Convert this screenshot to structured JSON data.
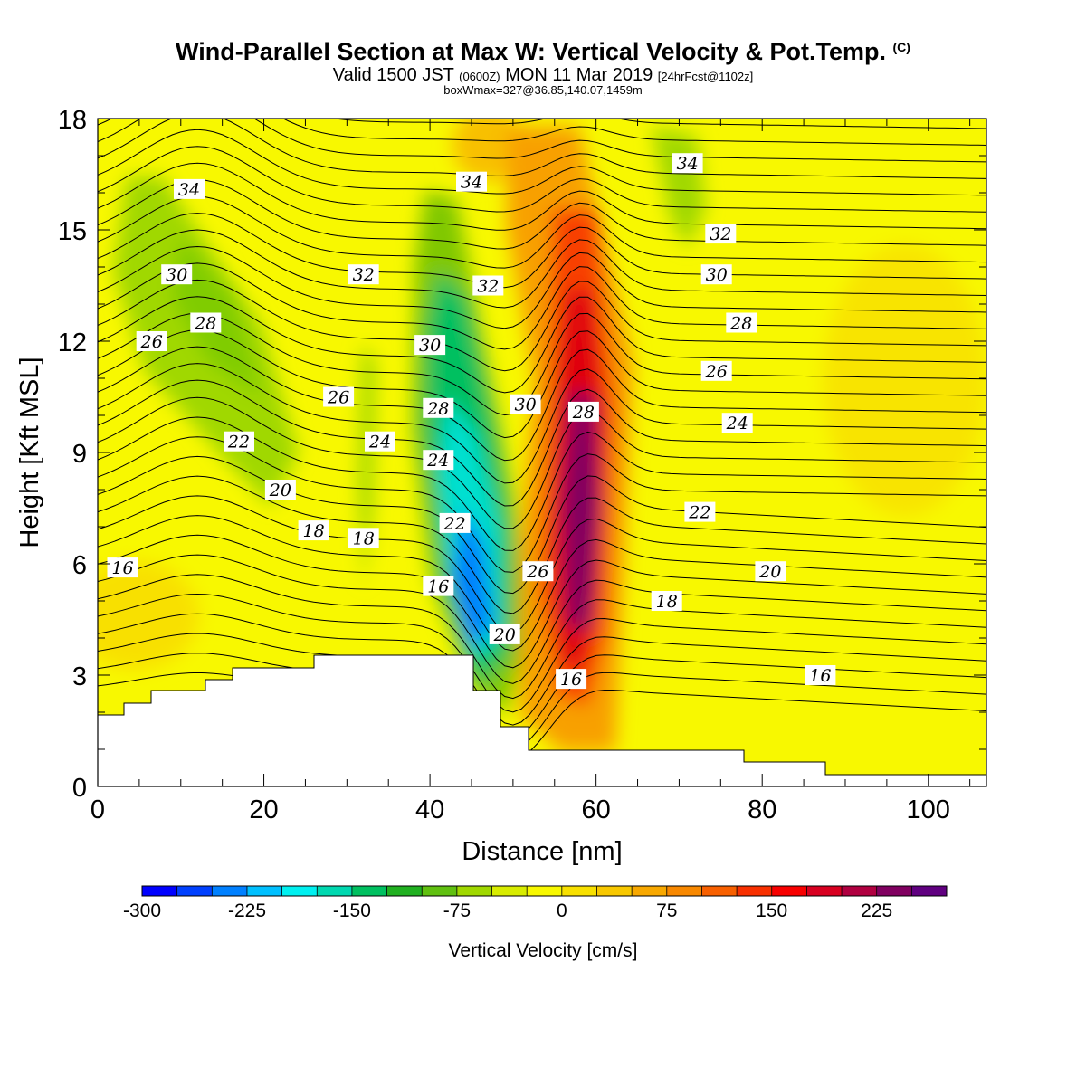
{
  "header": {
    "title": "Wind-Parallel Section at Max W: Vertical Velocity & Pot.Temp.",
    "title_mark": "(C)",
    "valid_prefix": "Valid 1500 JST",
    "valid_z": "(0600Z)",
    "valid_date": "MON 11 Mar 2019",
    "forecast": "[24hrFcst@1102z]",
    "box_info": "boxWmax=327@36.85,140.07,1459m"
  },
  "chart_data": {
    "type": "heatmap",
    "xlabel": "Distance [nm]",
    "ylabel": "Height [Kft MSL]",
    "xlim": [
      0,
      107
    ],
    "ylim": [
      0,
      18
    ],
    "x_ticks": [
      0,
      20,
      40,
      60,
      80,
      100
    ],
    "y_ticks": [
      0,
      3,
      6,
      9,
      12,
      15,
      18
    ],
    "grid": false,
    "colorbar": {
      "label": "Vertical Velocity [cm/s]",
      "tick_labels": [
        -300,
        -225,
        -150,
        -75,
        0,
        75,
        150,
        225
      ],
      "colors": [
        "#0000ff",
        "#0040ff",
        "#0080ff",
        "#00c0ff",
        "#00f0f0",
        "#00d8b0",
        "#00c060",
        "#20b020",
        "#60c010",
        "#a0d800",
        "#d8ec00",
        "#f8f800",
        "#f8e000",
        "#f8c800",
        "#f8a800",
        "#f88800",
        "#f86000",
        "#f83000",
        "#f80000",
        "#d80020",
        "#b00040",
        "#800060",
        "#600080"
      ]
    },
    "terrain_heights_kft": {
      "x": [
        0,
        3,
        6,
        13,
        16,
        26,
        45,
        48,
        52,
        78,
        88,
        107
      ],
      "height": [
        1.9,
        2.2,
        2.5,
        2.9,
        3.2,
        3.5,
        2.6,
        1.7,
        1.0,
        0.7,
        0.4,
        0.4
      ]
    },
    "theta_contour_labels": [
      {
        "value": 34,
        "x": 11,
        "y": 16.1
      },
      {
        "value": 30,
        "x": 9.5,
        "y": 13.8
      },
      {
        "value": 28,
        "x": 13,
        "y": 12.5
      },
      {
        "value": 26,
        "x": 6.5,
        "y": 12.0
      },
      {
        "value": 22,
        "x": 17,
        "y": 9.3
      },
      {
        "value": 20,
        "x": 22,
        "y": 8.0
      },
      {
        "value": 18,
        "x": 26,
        "y": 6.9
      },
      {
        "value": 16,
        "x": 3,
        "y": 5.9
      },
      {
        "value": 32,
        "x": 32,
        "y": 13.8
      },
      {
        "value": 26,
        "x": 29,
        "y": 10.5
      },
      {
        "value": 24,
        "x": 34,
        "y": 9.3
      },
      {
        "value": 18,
        "x": 32,
        "y": 6.7
      },
      {
        "value": 34,
        "x": 45,
        "y": 16.3
      },
      {
        "value": 32,
        "x": 47,
        "y": 13.5
      },
      {
        "value": 30,
        "x": 40,
        "y": 11.9
      },
      {
        "value": 28,
        "x": 41,
        "y": 10.2
      },
      {
        "value": 24,
        "x": 41,
        "y": 8.8
      },
      {
        "value": 22,
        "x": 43,
        "y": 7.1
      },
      {
        "value": 16,
        "x": 41,
        "y": 5.4
      },
      {
        "value": 20,
        "x": 49,
        "y": 4.1
      },
      {
        "value": 30,
        "x": 51.5,
        "y": 10.3
      },
      {
        "value": 28,
        "x": 58.5,
        "y": 10.1
      },
      {
        "value": 26,
        "x": 53,
        "y": 5.8
      },
      {
        "value": 16,
        "x": 57,
        "y": 2.9
      },
      {
        "value": 34,
        "x": 71,
        "y": 16.8
      },
      {
        "value": 32,
        "x": 75,
        "y": 14.9
      },
      {
        "value": 30,
        "x": 74.5,
        "y": 13.8
      },
      {
        "value": 28,
        "x": 77.5,
        "y": 12.5
      },
      {
        "value": 26,
        "x": 74.5,
        "y": 11.2
      },
      {
        "value": 24,
        "x": 77,
        "y": 9.8
      },
      {
        "value": 22,
        "x": 72.5,
        "y": 7.4
      },
      {
        "value": 20,
        "x": 81,
        "y": 5.8
      },
      {
        "value": 18,
        "x": 68.5,
        "y": 5.0
      },
      {
        "value": 16,
        "x": 87,
        "y": 3.0
      }
    ]
  }
}
